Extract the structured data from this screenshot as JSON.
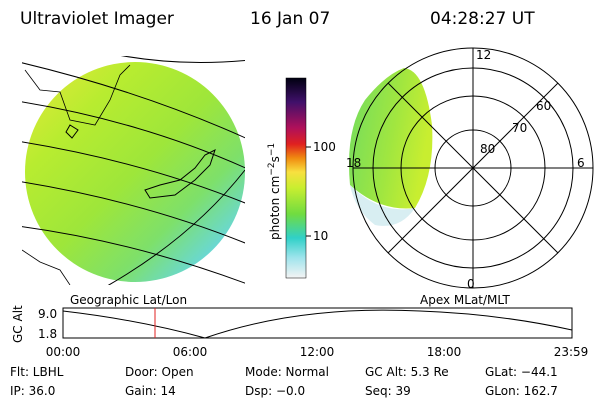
{
  "header": {
    "title": "Ultraviolet Imager",
    "date": "16 Jan 07",
    "time": "04:28:27 UT"
  },
  "colorbar": {
    "label": {
      "base": "photon cm",
      "exp1": "−2",
      "unit2": "s",
      "exp2": "−1"
    },
    "ticks": [
      "100",
      "10"
    ]
  },
  "geo_panel": {
    "label": "Geographic Lat/Lon"
  },
  "polar_panel": {
    "label": "Apex MLat/MLT",
    "mlt_labels": [
      "12",
      "18",
      "6",
      "0"
    ],
    "lat_labels": [
      "60",
      "70",
      "80"
    ]
  },
  "timeline": {
    "ylabel": "GC Alt",
    "yticks": [
      "9.0",
      "1.8"
    ],
    "xticks": [
      "00:00",
      "06:00",
      "12:00",
      "18:00",
      "23:59"
    ]
  },
  "footer": {
    "rows": [
      [
        "Flt: LBHL",
        "Door: Open",
        "Mode: Normal",
        "GC Alt: 5.3 Re",
        "GLat: −44.1"
      ],
      [
        "IP: 36.0",
        "Gain: 14",
        "Dsp: −0.0",
        "Seq: 39",
        "GLon: 162.7"
      ]
    ]
  }
}
